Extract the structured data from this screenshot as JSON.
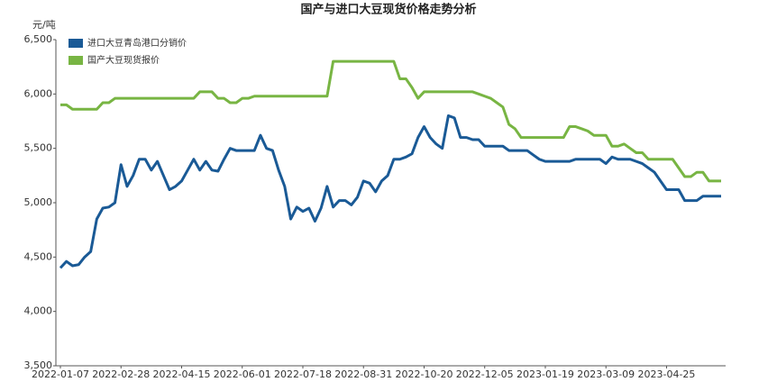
{
  "chart_data": {
    "type": "line",
    "title": "国产与进口大豆现货价格走势分析",
    "y_label": "元/吨",
    "categories": [
      "2022-01-07",
      null,
      null,
      null,
      null,
      null,
      null,
      null,
      null,
      null,
      "2022-02-28",
      null,
      null,
      null,
      null,
      null,
      null,
      null,
      null,
      null,
      "2022-04-15",
      null,
      null,
      null,
      null,
      null,
      null,
      null,
      null,
      null,
      "2022-06-01",
      null,
      null,
      null,
      null,
      null,
      null,
      null,
      null,
      null,
      "2022-07-18",
      null,
      null,
      null,
      null,
      null,
      null,
      null,
      null,
      null,
      "2022-08-31",
      null,
      null,
      null,
      null,
      null,
      null,
      null,
      null,
      null,
      "2022-10-20",
      null,
      null,
      null,
      null,
      null,
      null,
      null,
      null,
      null,
      "2022-12-05",
      null,
      null,
      null,
      null,
      null,
      null,
      null,
      null,
      null,
      "2023-01-19",
      null,
      null,
      null,
      null,
      null,
      null,
      null,
      null,
      null,
      "2023-03-09",
      null,
      null,
      null,
      null,
      null,
      null,
      null,
      null,
      null,
      "2023-04-25",
      null,
      null,
      null,
      null,
      null,
      null,
      null,
      null,
      null
    ],
    "series": [
      {
        "name": "进口大豆青岛港口分销价",
        "color": "#1a5a96",
        "values": [
          4400,
          4460,
          4420,
          4430,
          4500,
          4550,
          4850,
          4950,
          4960,
          5000,
          5350,
          5150,
          5250,
          5400,
          5400,
          5300,
          5380,
          5250,
          5120,
          5150,
          5200,
          5300,
          5400,
          5300,
          5380,
          5300,
          5290,
          5400,
          5500,
          5480,
          5480,
          5480,
          5480,
          5620,
          5500,
          5480,
          5300,
          5150,
          4850,
          4960,
          4920,
          4950,
          4830,
          4950,
          5150,
          4960,
          5020,
          5020,
          4980,
          5050,
          5200,
          5180,
          5100,
          5200,
          5250,
          5400,
          5400,
          5420,
          5450,
          5600,
          5700,
          5600,
          5540,
          5500,
          5800,
          5780,
          5600,
          5600,
          5580,
          5580,
          5520,
          5520,
          5520,
          5520,
          5480,
          5480,
          5480,
          5480,
          5440,
          5400,
          5380,
          5380,
          5380,
          5380,
          5380,
          5400,
          5400,
          5400,
          5400,
          5400,
          5360,
          5420,
          5400,
          5400,
          5400,
          5380,
          5360,
          5320,
          5280,
          5200,
          5120,
          5120,
          5120,
          5020,
          5020,
          5020,
          5060,
          5060,
          5060,
          5060
        ]
      },
      {
        "name": "国产大豆现货报价",
        "color": "#78b543",
        "values": [
          5900,
          5900,
          5860,
          5860,
          5860,
          5860,
          5860,
          5920,
          5920,
          5960,
          5960,
          5960,
          5960,
          5960,
          5960,
          5960,
          5960,
          5960,
          5960,
          5960,
          5960,
          5960,
          5960,
          6020,
          6020,
          6020,
          5960,
          5960,
          5920,
          5920,
          5960,
          5960,
          5980,
          5980,
          5980,
          5980,
          5980,
          5980,
          5980,
          5980,
          5980,
          5980,
          5980,
          5980,
          5980,
          6300,
          6300,
          6300,
          6300,
          6300,
          6300,
          6300,
          6300,
          6300,
          6300,
          6300,
          6140,
          6140,
          6060,
          5960,
          6020,
          6020,
          6020,
          6020,
          6020,
          6020,
          6020,
          6020,
          6020,
          6000,
          5980,
          5960,
          5920,
          5880,
          5720,
          5680,
          5600,
          5600,
          5600,
          5600,
          5600,
          5600,
          5600,
          5600,
          5700,
          5700,
          5680,
          5660,
          5620,
          5620,
          5620,
          5520,
          5520,
          5540,
          5500,
          5460,
          5460,
          5400,
          5400,
          5400,
          5400,
          5400,
          5320,
          5240,
          5240,
          5280,
          5280,
          5200,
          5200,
          5200
        ]
      }
    ],
    "ylim": [
      3500,
      6500
    ],
    "yticks": [
      {
        "value": 3500,
        "label": "3,500"
      },
      {
        "value": 4000,
        "label": "4,000"
      },
      {
        "value": 4500,
        "label": "4,500"
      },
      {
        "value": 5000,
        "label": "5,000"
      },
      {
        "value": 5500,
        "label": "5,500"
      },
      {
        "value": 6000,
        "label": "6,000"
      },
      {
        "value": 6500,
        "label": "6,500"
      }
    ],
    "grid": false
  }
}
